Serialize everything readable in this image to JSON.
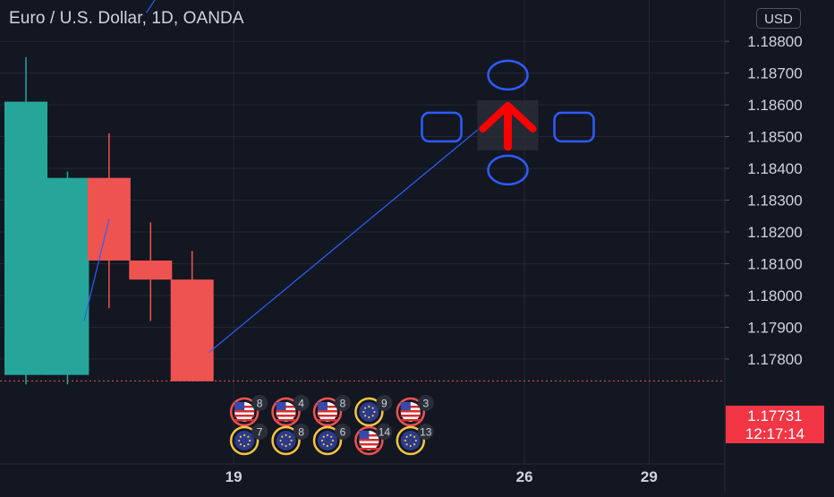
{
  "header": {
    "symbol_title": "Euro / U.S. Dollar, 1D, OANDA",
    "currency_button": "USD"
  },
  "last_price": {
    "value": "1.17731",
    "countdown": "12:17:14",
    "color": "#f23645"
  },
  "colors": {
    "background": "#131722",
    "bull": "#26a69a",
    "bear": "#ef5350",
    "grid": "#242732",
    "axis_text": "#d1d4dc",
    "trend_line": "#2962ff",
    "arrow": "#ff0000",
    "handle": "#2f5bff",
    "flag_ring_us": "#ef5350",
    "flag_ring_eu": "#f5c542"
  },
  "chart_data": {
    "type": "candlestick",
    "title": "Euro / U.S. Dollar, 1D, OANDA",
    "y_axis": {
      "ticks": [
        1.188,
        1.187,
        1.186,
        1.185,
        1.184,
        1.183,
        1.182,
        1.181,
        1.18,
        1.179,
        1.178
      ],
      "tick_labels": [
        "1.18800",
        "1.18700",
        "1.18600",
        "1.18500",
        "1.18400",
        "1.18300",
        "1.18200",
        "1.18100",
        "1.18000",
        "1.17900",
        "1.17800"
      ],
      "range": [
        1.1747,
        1.1893
      ]
    },
    "x_axis": {
      "ticks": [
        19,
        26,
        29
      ],
      "tick_labels": [
        "19",
        "26",
        "29"
      ],
      "range": [
        14,
        30.5
      ]
    },
    "candles": [
      {
        "x": 14,
        "open": 1.1775,
        "high": 1.1875,
        "low": 1.1772,
        "close": 1.1861
      },
      {
        "x": 15,
        "open": 1.1775,
        "high": 1.1839,
        "low": 1.1772,
        "close": 1.1837
      },
      {
        "x": 16,
        "open": 1.1837,
        "high": 1.1851,
        "low": 1.1796,
        "close": 1.1811
      },
      {
        "x": 17,
        "open": 1.1811,
        "high": 1.1823,
        "low": 1.1792,
        "close": 1.1805
      },
      {
        "x": 18,
        "open": 1.1805,
        "high": 1.1814,
        "low": 1.1773,
        "close": 1.1773
      }
    ],
    "trend_lines": [
      {
        "from": [
          15.4,
          1.1792
        ],
        "to": [
          16,
          1.1824
        ]
      },
      {
        "from": [
          18.4,
          1.1782
        ],
        "to": [
          25.6,
          1.186
        ]
      }
    ],
    "arrow": {
      "x": 25.6,
      "y": 1.1853,
      "direction": "up"
    },
    "last_price_line": 1.17731,
    "events": [
      {
        "x": 19,
        "row": 1,
        "country": "us",
        "count": 8
      },
      {
        "x": 20,
        "row": 1,
        "country": "us",
        "count": 4
      },
      {
        "x": 21,
        "row": 1,
        "country": "us",
        "count": 8
      },
      {
        "x": 22,
        "row": 1,
        "country": "eu",
        "count": 9
      },
      {
        "x": 23,
        "row": 1,
        "country": "us",
        "count": 3
      },
      {
        "x": 19,
        "row": 2,
        "country": "eu",
        "count": 7
      },
      {
        "x": 20,
        "row": 2,
        "country": "eu",
        "count": 8
      },
      {
        "x": 21,
        "row": 2,
        "country": "eu",
        "count": 6
      },
      {
        "x": 22,
        "row": 2,
        "country": "us",
        "count": 14
      },
      {
        "x": 23,
        "row": 2,
        "country": "eu",
        "count": 13
      }
    ]
  }
}
